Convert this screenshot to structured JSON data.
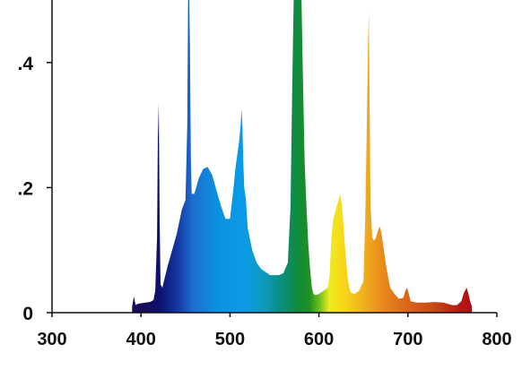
{
  "chart_data": {
    "type": "area",
    "title": "",
    "xlabel": "",
    "ylabel": "",
    "xlim": [
      300,
      800
    ],
    "ylim": [
      0,
      0.5
    ],
    "grid": false,
    "x_ticks": [
      300,
      400,
      500,
      600,
      700,
      800
    ],
    "x_tick_labels": [
      "300",
      "400",
      "500",
      "600",
      "700",
      "800"
    ],
    "y_ticks": [
      0,
      0.2,
      0.4
    ],
    "y_tick_labels": [
      "0",
      ".2",
      ".4"
    ],
    "fill": "spectral (wavelength color gradient)",
    "series": [
      {
        "x": [
          390,
          392,
          394,
          396,
          400,
          405,
          410,
          414,
          416,
          418,
          419,
          420,
          421,
          422,
          424,
          430,
          440,
          446,
          450,
          452,
          453,
          454,
          455,
          456,
          457,
          460,
          465,
          470,
          475,
          480,
          485,
          490,
          495,
          500,
          504,
          506,
          508,
          510,
          512,
          513,
          514,
          515,
          516,
          518,
          520,
          525,
          530,
          535,
          540,
          545,
          550,
          555,
          560,
          565,
          568,
          570,
          572,
          574,
          576,
          578,
          580,
          582,
          584,
          586,
          588,
          590,
          592,
          594,
          596,
          600,
          605,
          610,
          612,
          614,
          616,
          618,
          620,
          622,
          624,
          626,
          628,
          630,
          632,
          634,
          636,
          640,
          645,
          650,
          652,
          654,
          655,
          656,
          657,
          658,
          660,
          662,
          664,
          666,
          668,
          670,
          672,
          674,
          676,
          678,
          680,
          685,
          690,
          695,
          697,
          699,
          701,
          703,
          710,
          720,
          730,
          740,
          750,
          755,
          760,
          763,
          766,
          768,
          770,
          772,
          772
        ],
        "y": [
          0.01,
          0.026,
          0.012,
          0.014,
          0.015,
          0.016,
          0.017,
          0.02,
          0.035,
          0.12,
          0.28,
          0.335,
          0.15,
          0.045,
          0.04,
          0.075,
          0.125,
          0.165,
          0.18,
          0.3,
          0.52,
          0.52,
          0.42,
          0.25,
          0.19,
          0.19,
          0.215,
          0.23,
          0.233,
          0.22,
          0.195,
          0.17,
          0.15,
          0.15,
          0.2,
          0.23,
          0.25,
          0.27,
          0.3,
          0.325,
          0.3,
          0.24,
          0.2,
          0.18,
          0.135,
          0.1,
          0.08,
          0.07,
          0.065,
          0.06,
          0.06,
          0.06,
          0.063,
          0.08,
          0.17,
          0.36,
          0.53,
          0.53,
          0.53,
          0.53,
          0.53,
          0.38,
          0.24,
          0.17,
          0.11,
          0.07,
          0.04,
          0.03,
          0.028,
          0.03,
          0.035,
          0.04,
          0.06,
          0.12,
          0.15,
          0.16,
          0.17,
          0.18,
          0.19,
          0.17,
          0.13,
          0.09,
          0.06,
          0.04,
          0.032,
          0.03,
          0.035,
          0.05,
          0.15,
          0.32,
          0.42,
          0.48,
          0.33,
          0.17,
          0.12,
          0.115,
          0.12,
          0.13,
          0.138,
          0.13,
          0.11,
          0.09,
          0.07,
          0.055,
          0.04,
          0.03,
          0.022,
          0.024,
          0.035,
          0.04,
          0.03,
          0.018,
          0.016,
          0.016,
          0.017,
          0.016,
          0.012,
          0.012,
          0.018,
          0.032,
          0.04,
          0.03,
          0.018,
          0.01,
          0.0
        ]
      }
    ]
  }
}
